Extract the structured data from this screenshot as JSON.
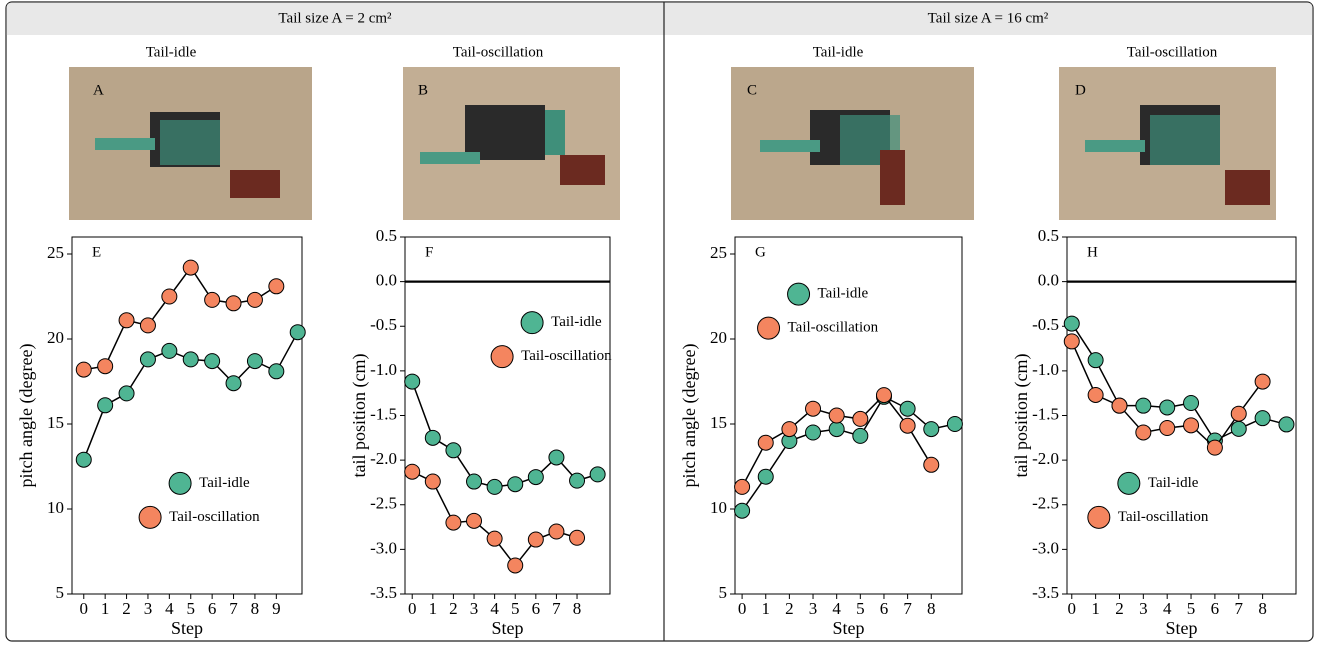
{
  "headers": [
    "Tail size A = 2 cm²",
    "Tail size A = 16 cm²"
  ],
  "column_titles": [
    "Tail-idle",
    "Tail-oscillation",
    "Tail-idle",
    "Tail-oscillation"
  ],
  "photo_labels": [
    "A",
    "B",
    "C",
    "D"
  ],
  "chart_data": [
    {
      "type": "line",
      "label": "E",
      "ylabel": "pitch angle (degree)",
      "xlabel": "Step",
      "xlim": [
        -0.55,
        10.2
      ],
      "xticks": [
        0,
        1,
        2,
        3,
        4,
        5,
        6,
        7,
        8,
        9
      ],
      "ylim": [
        5,
        26
      ],
      "yticks": [
        5,
        10,
        15,
        20,
        25
      ],
      "legend": "lower center",
      "zero_line": false,
      "series": [
        {
          "name": "Tail-idle",
          "color": "#4fb593",
          "x": [
            0,
            1,
            2,
            3,
            4,
            5,
            6,
            7,
            8,
            9,
            10
          ],
          "values": [
            12.9,
            16.1,
            16.8,
            18.8,
            19.3,
            18.8,
            18.7,
            17.4,
            18.7,
            18.1,
            20.4
          ]
        },
        {
          "name": "Tail-oscillation",
          "color": "#f4855f",
          "x": [
            0,
            1,
            2,
            3,
            4,
            5,
            6,
            7,
            8,
            9
          ],
          "values": [
            18.2,
            18.4,
            21.1,
            20.8,
            22.5,
            24.2,
            22.3,
            22.1,
            22.3,
            23.1
          ]
        }
      ]
    },
    {
      "type": "line",
      "label": "F",
      "ylabel": "tail position (cm)",
      "xlabel": "Step",
      "xlim": [
        -0.35,
        9.6
      ],
      "xticks": [
        0,
        1,
        2,
        3,
        4,
        5,
        6,
        7,
        8
      ],
      "ylim": [
        -3.5,
        0.5
      ],
      "yticks": [
        0.5,
        {
          "value": 0,
          "label": "0.0"
        },
        -0.5,
        {
          "value": -1,
          "label": "-1.0"
        },
        -1.5,
        {
          "value": -2,
          "label": "-2.0"
        },
        -2.5,
        {
          "value": -3,
          "label": "-3.0"
        },
        -3.5
      ],
      "legend": "upper right",
      "zero_line": true,
      "series": [
        {
          "name": "Tail-idle",
          "color": "#4fb593",
          "x": [
            0,
            1,
            2,
            3,
            4,
            5,
            6,
            7,
            8,
            9
          ],
          "values": [
            -1.12,
            -1.75,
            -1.89,
            -2.24,
            -2.3,
            -2.27,
            -2.19,
            -1.97,
            -2.23,
            -2.16
          ]
        },
        {
          "name": "Tail-oscillation",
          "color": "#f4855f",
          "x": [
            0,
            1,
            2,
            3,
            4,
            5,
            6,
            7,
            8
          ],
          "values": [
            -2.13,
            -2.24,
            -2.7,
            -2.68,
            -2.88,
            -3.18,
            -2.89,
            -2.8,
            -2.87
          ]
        }
      ]
    },
    {
      "type": "line",
      "label": "G",
      "ylabel": "pitch angle (degree)",
      "xlabel": "Step",
      "xlim": [
        -0.3,
        9.3
      ],
      "xticks": [
        0,
        1,
        2,
        3,
        4,
        5,
        6,
        7,
        8
      ],
      "ylim": [
        5,
        26
      ],
      "yticks": [
        5,
        10,
        15,
        20,
        25
      ],
      "legend": "upper left",
      "zero_line": false,
      "series": [
        {
          "name": "Tail-idle",
          "color": "#4fb593",
          "x": [
            0,
            1,
            2,
            3,
            4,
            5,
            6,
            7,
            8,
            9
          ],
          "values": [
            9.9,
            11.9,
            14.0,
            14.5,
            14.7,
            14.3,
            16.6,
            15.9,
            14.7,
            15.0
          ]
        },
        {
          "name": "Tail-oscillation",
          "color": "#f4855f",
          "x": [
            0,
            1,
            2,
            3,
            4,
            5,
            6,
            7,
            8
          ],
          "values": [
            11.3,
            13.9,
            14.7,
            15.9,
            15.5,
            15.3,
            16.7,
            14.9,
            12.6
          ]
        }
      ]
    },
    {
      "type": "line",
      "label": "H",
      "ylabel": "tail position (cm)",
      "xlabel": "Step",
      "xlim": [
        -0.2,
        9.4
      ],
      "xticks": [
        0,
        1,
        2,
        3,
        4,
        5,
        6,
        7,
        8
      ],
      "ylim": [
        -3.5,
        0.5
      ],
      "yticks": [
        0.5,
        {
          "value": 0,
          "label": "0.0"
        },
        -0.5,
        {
          "value": -1,
          "label": "-1.0"
        },
        -1.5,
        {
          "value": -2,
          "label": "-2.0"
        },
        -2.5,
        {
          "value": -3,
          "label": "-3.0"
        },
        -3.5
      ],
      "legend": "lower left",
      "zero_line": true,
      "series": [
        {
          "name": "Tail-idle",
          "color": "#4fb593",
          "x": [
            0,
            1,
            2,
            3,
            4,
            5,
            6,
            7,
            8,
            9
          ],
          "values": [
            -0.47,
            -0.88,
            -1.39,
            -1.39,
            -1.41,
            -1.36,
            -1.78,
            -1.65,
            -1.53,
            -1.6
          ]
        },
        {
          "name": "Tail-oscillation",
          "color": "#f4855f",
          "x": [
            0,
            1,
            2,
            3,
            4,
            5,
            6,
            7,
            8
          ],
          "values": [
            -0.67,
            -1.27,
            -1.39,
            -1.69,
            -1.64,
            -1.61,
            -1.86,
            -1.48,
            -1.12
          ]
        }
      ]
    }
  ]
}
